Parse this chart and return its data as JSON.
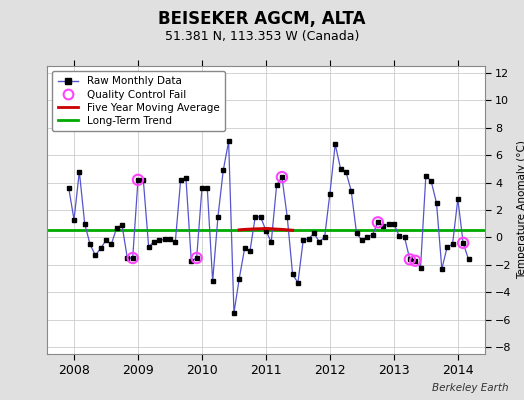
{
  "title": "BEISEKER AGCM, ALTA",
  "subtitle": "51.381 N, 113.353 W (Canada)",
  "ylabel": "Temperature Anomaly (°C)",
  "watermark": "Berkeley Earth",
  "ylim": [
    -8.5,
    12.5
  ],
  "yticks": [
    -8,
    -6,
    -4,
    -2,
    0,
    2,
    4,
    6,
    8,
    10,
    12
  ],
  "xlim_start": 2007.58,
  "xlim_end": 2014.42,
  "xtick_years": [
    2008,
    2009,
    2010,
    2011,
    2012,
    2013,
    2014
  ],
  "long_term_trend_y": 0.55,
  "bg_color": "#e0e0e0",
  "plot_bg_color": "#ffffff",
  "line_color": "#5555cc",
  "dot_color": "#000000",
  "qc_color": "#ff44ff",
  "ma_color": "#cc0000",
  "trend_color": "#00aa00",
  "monthly_data": [
    [
      2007.917,
      3.6
    ],
    [
      2008.0,
      1.3
    ],
    [
      2008.083,
      4.8
    ],
    [
      2008.167,
      1.0
    ],
    [
      2008.25,
      -0.5
    ],
    [
      2008.333,
      -1.3
    ],
    [
      2008.417,
      -0.8
    ],
    [
      2008.5,
      -0.2
    ],
    [
      2008.583,
      -0.5
    ],
    [
      2008.667,
      0.7
    ],
    [
      2008.75,
      0.9
    ],
    [
      2008.833,
      -1.5
    ],
    [
      2008.917,
      -1.5
    ],
    [
      2009.0,
      4.2
    ],
    [
      2009.083,
      4.2
    ],
    [
      2009.167,
      -0.7
    ],
    [
      2009.25,
      -0.3
    ],
    [
      2009.333,
      -0.2
    ],
    [
      2009.417,
      -0.15
    ],
    [
      2009.5,
      -0.1
    ],
    [
      2009.583,
      -0.35
    ],
    [
      2009.667,
      4.2
    ],
    [
      2009.75,
      4.3
    ],
    [
      2009.833,
      -1.7
    ],
    [
      2009.917,
      -1.5
    ],
    [
      2010.0,
      3.6
    ],
    [
      2010.083,
      3.6
    ],
    [
      2010.167,
      -3.2
    ],
    [
      2010.25,
      1.5
    ],
    [
      2010.333,
      4.9
    ],
    [
      2010.417,
      7.0
    ],
    [
      2010.5,
      -5.5
    ],
    [
      2010.583,
      -3.0
    ],
    [
      2010.667,
      -0.8
    ],
    [
      2010.75,
      -1.0
    ],
    [
      2010.833,
      1.5
    ],
    [
      2010.917,
      1.5
    ],
    [
      2011.0,
      0.5
    ],
    [
      2011.083,
      -0.35
    ],
    [
      2011.167,
      3.8
    ],
    [
      2011.25,
      4.4
    ],
    [
      2011.333,
      1.5
    ],
    [
      2011.417,
      -2.7
    ],
    [
      2011.5,
      -3.3
    ],
    [
      2011.583,
      -0.2
    ],
    [
      2011.667,
      -0.1
    ],
    [
      2011.75,
      0.3
    ],
    [
      2011.833,
      -0.3
    ],
    [
      2011.917,
      0.0
    ],
    [
      2012.0,
      3.2
    ],
    [
      2012.083,
      6.8
    ],
    [
      2012.167,
      5.0
    ],
    [
      2012.25,
      4.8
    ],
    [
      2012.333,
      3.4
    ],
    [
      2012.417,
      0.3
    ],
    [
      2012.5,
      -0.2
    ],
    [
      2012.583,
      0.0
    ],
    [
      2012.667,
      0.2
    ],
    [
      2012.75,
      1.1
    ],
    [
      2012.833,
      0.8
    ],
    [
      2012.917,
      1.0
    ],
    [
      2013.0,
      1.0
    ],
    [
      2013.083,
      0.1
    ],
    [
      2013.167,
      0.0
    ],
    [
      2013.25,
      -1.6
    ],
    [
      2013.333,
      -1.7
    ],
    [
      2013.417,
      -2.2
    ],
    [
      2013.5,
      4.5
    ],
    [
      2013.583,
      4.1
    ],
    [
      2013.667,
      2.5
    ],
    [
      2013.75,
      -2.3
    ],
    [
      2013.833,
      -0.7
    ],
    [
      2013.917,
      -0.5
    ],
    [
      2014.0,
      2.8
    ],
    [
      2014.083,
      -0.4
    ],
    [
      2014.167,
      -1.6
    ]
  ],
  "qc_fail_points": [
    [
      2008.917,
      -1.5
    ],
    [
      2009.0,
      4.2
    ],
    [
      2009.917,
      -1.5
    ],
    [
      2011.25,
      4.4
    ],
    [
      2012.75,
      1.1
    ],
    [
      2013.25,
      -1.6
    ],
    [
      2013.333,
      -1.7
    ],
    [
      2014.083,
      -0.4
    ]
  ],
  "moving_avg": [
    [
      2010.583,
      0.55
    ],
    [
      2010.667,
      0.58
    ],
    [
      2010.75,
      0.6
    ],
    [
      2010.833,
      0.62
    ],
    [
      2010.917,
      0.63
    ],
    [
      2011.0,
      0.65
    ],
    [
      2011.083,
      0.63
    ],
    [
      2011.167,
      0.6
    ],
    [
      2011.25,
      0.58
    ],
    [
      2011.333,
      0.55
    ],
    [
      2011.417,
      0.52
    ]
  ]
}
